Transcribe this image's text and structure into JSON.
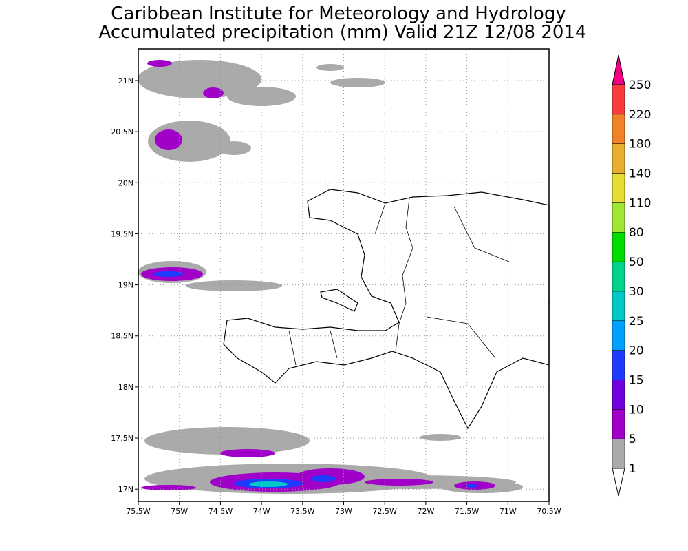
{
  "titles": [
    "Caribbean Institute for Meteorology and Hydrology",
    "Accumulated precipitation (mm) Valid 21Z 12/08 2014"
  ],
  "map": {
    "xlim": [
      -75.5,
      -70.5
    ],
    "ylim": [
      16.88,
      21.31
    ],
    "xticks": [
      {
        "value": -75.5,
        "label": "75.5W"
      },
      {
        "value": -75,
        "label": "75W"
      },
      {
        "value": -74.5,
        "label": "74.5W"
      },
      {
        "value": -74,
        "label": "74W"
      },
      {
        "value": -73.5,
        "label": "73.5W"
      },
      {
        "value": -73,
        "label": "73W"
      },
      {
        "value": -72.5,
        "label": "72.5W"
      },
      {
        "value": -72,
        "label": "72W"
      },
      {
        "value": -71.5,
        "label": "71.5W"
      },
      {
        "value": -71,
        "label": "71W"
      },
      {
        "value": -70.5,
        "label": "70.5W"
      }
    ],
    "yticks": [
      {
        "value": 17,
        "label": "17N"
      },
      {
        "value": 17.5,
        "label": "17.5N"
      },
      {
        "value": 18,
        "label": "18N"
      },
      {
        "value": 18.5,
        "label": "18.5N"
      },
      {
        "value": 19,
        "label": "19N"
      },
      {
        "value": 19.5,
        "label": "19.5N"
      },
      {
        "value": 20,
        "label": "20N"
      },
      {
        "value": 20.5,
        "label": "20.5N"
      },
      {
        "value": 21,
        "label": "21N"
      }
    ],
    "grid": true
  },
  "colorbar": {
    "levels": [
      1,
      5,
      10,
      15,
      20,
      25,
      30,
      50,
      80,
      110,
      140,
      180,
      220,
      250
    ],
    "colors": [
      "#ffffff",
      "#aaaaaa",
      "#a000c8",
      "#7000dc",
      "#1e3cff",
      "#00a0ff",
      "#00c8c8",
      "#00d28c",
      "#00dc00",
      "#a0e632",
      "#e6dc32",
      "#e6af2d",
      "#f08228",
      "#fa3c3c",
      "#f00082"
    ]
  }
}
